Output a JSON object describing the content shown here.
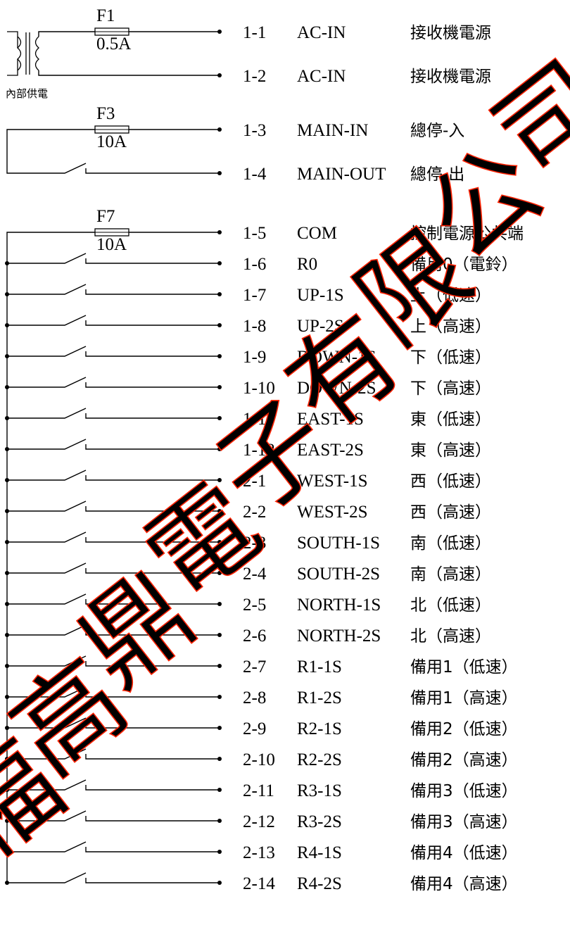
{
  "transformer": {
    "label": "內部供電"
  },
  "fuses": [
    {
      "id": "fuse-f1",
      "name": "F1",
      "rating": "0.5A"
    },
    {
      "id": "fuse-f3",
      "name": "F3",
      "rating": "10A"
    },
    {
      "id": "fuse-f7",
      "name": "F7",
      "rating": "10A"
    }
  ],
  "terminals": [
    {
      "no": "1-1",
      "signal": "AC-IN",
      "desc": "接收機電源"
    },
    {
      "no": "1-2",
      "signal": "AC-IN",
      "desc": "接收機電源"
    },
    {
      "no": "1-3",
      "signal": "MAIN-IN",
      "desc": "總停-入"
    },
    {
      "no": "1-4",
      "signal": "MAIN-OUT",
      "desc": "總停-出"
    },
    {
      "no": "1-5",
      "signal": "COM",
      "desc": "控制電源公共端"
    },
    {
      "no": "1-6",
      "signal": "R0",
      "desc": "備用0（電鈴）"
    },
    {
      "no": "1-7",
      "signal": "UP-1S",
      "desc": "上（低速）"
    },
    {
      "no": "1-8",
      "signal": "UP-2S",
      "desc": "上（高速）"
    },
    {
      "no": "1-9",
      "signal": "DOWN-1S",
      "desc": "下（低速）"
    },
    {
      "no": "1-10",
      "signal": "DOWN-2S",
      "desc": "下（高速）"
    },
    {
      "no": "1-11",
      "signal": "EAST-1S",
      "desc": "東（低速）"
    },
    {
      "no": "1-12",
      "signal": "EAST-2S",
      "desc": "東（高速）"
    },
    {
      "no": "2-1",
      "signal": "WEST-1S",
      "desc": "西（低速）"
    },
    {
      "no": "2-2",
      "signal": "WEST-2S",
      "desc": "西（高速）"
    },
    {
      "no": "2-3",
      "signal": "SOUTH-1S",
      "desc": "南（低速）"
    },
    {
      "no": "2-4",
      "signal": "SOUTH-2S",
      "desc": "南（高速）"
    },
    {
      "no": "2-5",
      "signal": "NORTH-1S",
      "desc": "北（低速）"
    },
    {
      "no": "2-6",
      "signal": "NORTH-2S",
      "desc": "北（高速）"
    },
    {
      "no": "2-7",
      "signal": "R1-1S",
      "desc": "備用1（低速）"
    },
    {
      "no": "2-8",
      "signal": "R1-2S",
      "desc": "備用1（高速）"
    },
    {
      "no": "2-9",
      "signal": "R2-1S",
      "desc": "備用2（低速）"
    },
    {
      "no": "2-10",
      "signal": "R2-2S",
      "desc": "備用2（高速）"
    },
    {
      "no": "2-11",
      "signal": "R3-1S",
      "desc": "備用3（低速）"
    },
    {
      "no": "2-12",
      "signal": "R3-2S",
      "desc": "備用3（高速）"
    },
    {
      "no": "2-13",
      "signal": "R4-1S",
      "desc": "備用4（低速）"
    },
    {
      "no": "2-14",
      "signal": "R4-2S",
      "desc": "備用4（高速）"
    }
  ],
  "watermark": {
    "text": "福高鼎電子有限公司",
    "color": "#ff2200"
  },
  "colors": {
    "line": "#000000"
  }
}
